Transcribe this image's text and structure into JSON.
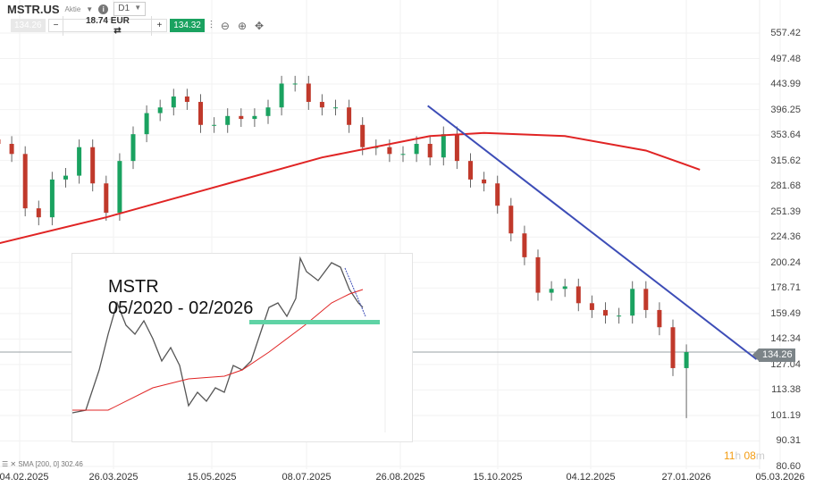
{
  "header": {
    "symbol": "MSTR.US",
    "type": "Aktie",
    "timeframe": "D1",
    "bid": "134.26",
    "quantity": "18.74 EUR",
    "ask": "134.32",
    "minus": "−",
    "plus": "+"
  },
  "icons": [
    "caret-down-icon",
    "info-icon",
    "swap-icon",
    "candlestick-icon",
    "zoom-out-icon",
    "zoom-in-icon",
    "move-icon"
  ],
  "colors": {
    "sma": "#e02424",
    "trendline": "#3d4db7",
    "up": "#1aa260",
    "down": "#c0392b",
    "ask": "#1aa260",
    "band": "#5fd3a5"
  },
  "indicator": {
    "label": "SMA [200, 0] 302.46"
  },
  "timer": {
    "h": "11",
    "hu": "h",
    "m": "08",
    "mu": "m"
  },
  "inset": {
    "title": "MSTR",
    "period": "05/2020 - 02/2026"
  },
  "chart_data": {
    "type": "candlestick",
    "scale": "log",
    "ylim": [
      80.6,
      557.42
    ],
    "y_ticks": [
      "557.42",
      "497.48",
      "443.99",
      "396.25",
      "353.64",
      "315.62",
      "281.68",
      "251.39",
      "224.36",
      "200.24",
      "178.71",
      "159.49",
      "142.34",
      "127.04",
      "113.38",
      "101.19",
      "90.31",
      "80.60"
    ],
    "x_ticks": [
      "04.02.2025",
      "26.03.2025",
      "15.05.2025",
      "08.07.2025",
      "26.08.2025",
      "15.10.2025",
      "04.12.2025",
      "27.01.2026",
      "05.03.2026"
    ],
    "current_price": "134.26",
    "weekly_close_start": "2025-01-24",
    "weekly_closes": [
      340,
      325,
      255,
      245,
      290,
      295,
      335,
      285,
      250,
      315,
      355,
      390,
      400,
      420,
      410,
      370,
      370,
      385,
      380,
      385,
      400,
      445,
      445,
      410,
      400,
      400,
      370,
      335,
      335,
      325,
      325,
      340,
      320,
      355,
      315,
      290,
      285,
      258,
      228,
      205,
      175,
      178,
      180,
      167,
      162,
      158,
      158,
      178,
      162,
      150,
      125,
      134.26
    ],
    "sma200": [
      [
        0,
        218
      ],
      [
        8,
        245
      ],
      [
        16,
        280
      ],
      [
        24,
        320
      ],
      [
        32,
        352
      ],
      [
        36,
        357
      ],
      [
        42,
        352
      ],
      [
        48,
        330
      ],
      [
        52,
        303
      ]
    ],
    "trendline": [
      [
        "2025-09-03",
        403
      ],
      [
        "2026-02-20",
        130
      ]
    ]
  }
}
